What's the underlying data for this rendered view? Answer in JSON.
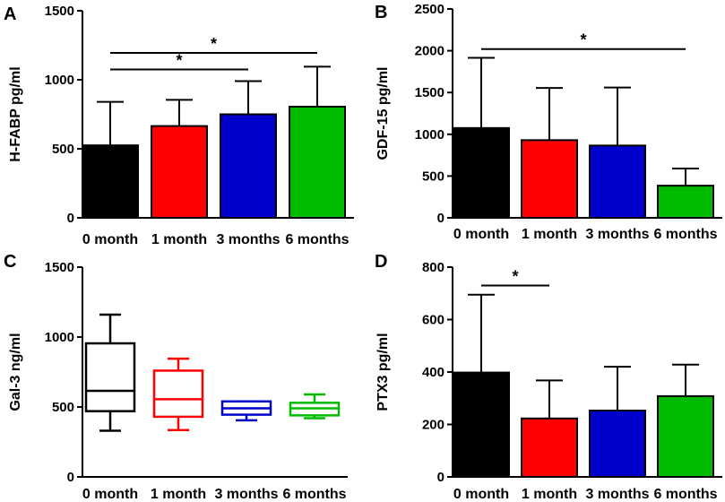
{
  "chart_data": [
    {
      "panel": "A",
      "type": "bar",
      "ylabel": "H-FABP pg/ml",
      "ylim": [
        0,
        1500
      ],
      "yticks": [
        0,
        500,
        1000,
        1500
      ],
      "categories": [
        "0 month",
        "1 month",
        "3 months",
        "6 months"
      ],
      "values": [
        525,
        665,
        750,
        805
      ],
      "errors_upper": [
        840,
        855,
        990,
        1095
      ],
      "colors": [
        "#000000",
        "#ff0000",
        "#0000cc",
        "#00bb00"
      ],
      "significance": [
        {
          "from": 0,
          "to": 3,
          "label": "*",
          "level": 1195
        },
        {
          "from": 0,
          "to": 2,
          "label": "*",
          "level": 1075
        }
      ]
    },
    {
      "panel": "B",
      "type": "bar",
      "ylabel": "GDF-15 pg/ml",
      "ylim": [
        0,
        2500
      ],
      "yticks": [
        0,
        500,
        1000,
        1500,
        2000,
        2500
      ],
      "categories": [
        "0 month",
        "1 month",
        "3 months",
        "6 months"
      ],
      "values": [
        1075,
        930,
        865,
        385
      ],
      "errors_upper": [
        1915,
        1555,
        1560,
        590
      ],
      "colors": [
        "#000000",
        "#ff0000",
        "#0000cc",
        "#00bb00"
      ],
      "significance": [
        {
          "from": 0,
          "to": 3,
          "label": "*",
          "level": 2020
        }
      ]
    },
    {
      "panel": "C",
      "type": "box",
      "ylabel": "Gal-3 ng/ml",
      "ylim": [
        0,
        1500
      ],
      "yticks": [
        0,
        500,
        1000,
        1500
      ],
      "categories": [
        "0 month",
        "1 month",
        "3 months",
        "6 months"
      ],
      "boxes": [
        {
          "min": 330,
          "q1": 470,
          "median": 615,
          "q3": 955,
          "max": 1160
        },
        {
          "min": 335,
          "q1": 430,
          "median": 555,
          "q3": 760,
          "max": 845
        },
        {
          "min": 405,
          "q1": 445,
          "median": 490,
          "q3": 540,
          "max": 540
        },
        {
          "min": 420,
          "q1": 440,
          "median": 490,
          "q3": 530,
          "max": 590
        }
      ],
      "colors": [
        "#000000",
        "#ff0000",
        "#0000cc",
        "#00bb00"
      ],
      "significance": []
    },
    {
      "panel": "D",
      "type": "bar",
      "ylabel": "PTX3 pg/ml",
      "ylim": [
        0,
        800
      ],
      "yticks": [
        0,
        200,
        400,
        600,
        800
      ],
      "categories": [
        "0 month",
        "1 month",
        "3 months",
        "6 months"
      ],
      "values": [
        398,
        223,
        253,
        308
      ],
      "errors_upper": [
        695,
        368,
        420,
        428
      ],
      "colors": [
        "#000000",
        "#ff0000",
        "#0000cc",
        "#00bb00"
      ],
      "significance": [
        {
          "from": 0,
          "to": 1,
          "label": "*",
          "level": 730
        }
      ]
    }
  ]
}
